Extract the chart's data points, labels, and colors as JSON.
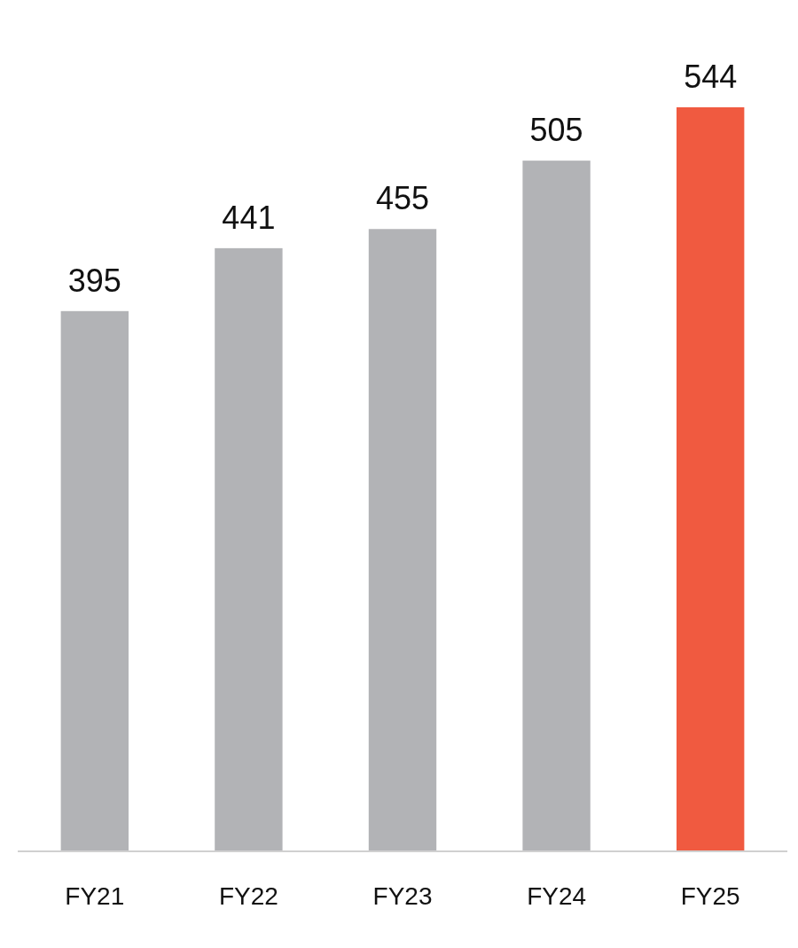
{
  "chart_data": {
    "type": "bar",
    "categories": [
      "FY21",
      "FY22",
      "FY23",
      "FY24",
      "FY25"
    ],
    "values": [
      395,
      441,
      455,
      505,
      544
    ],
    "colors": [
      "#b2b3b6",
      "#b2b3b6",
      "#b2b3b6",
      "#b2b3b6",
      "#f05a40"
    ],
    "ylim": [
      0,
      544
    ],
    "data_labels": true
  }
}
